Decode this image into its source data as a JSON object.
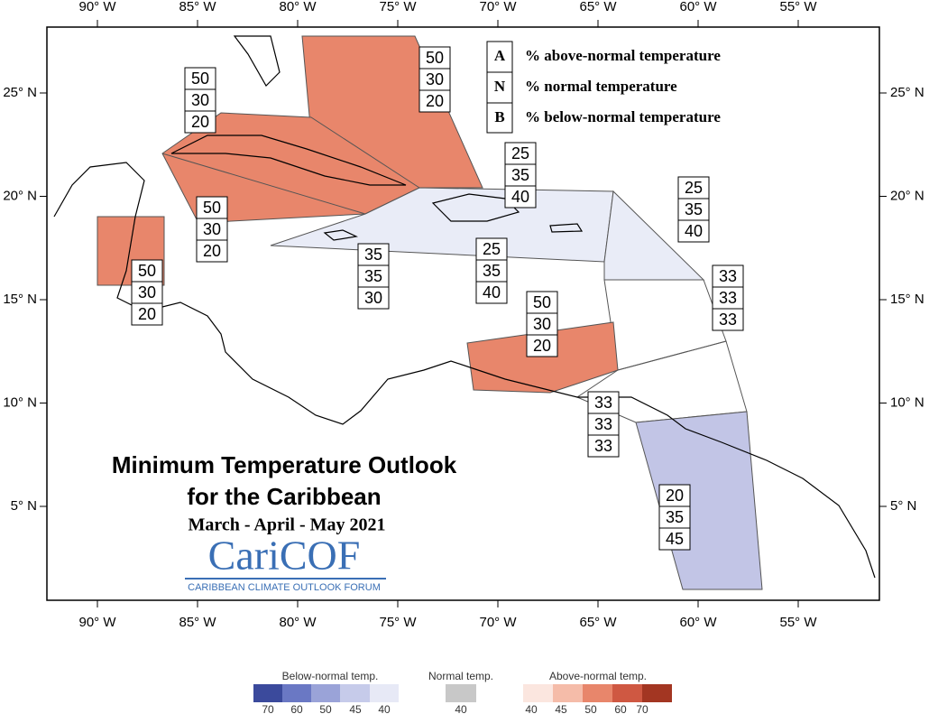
{
  "map": {
    "longitude_labels": [
      "90° W",
      "85° W",
      "80° W",
      "75° W",
      "70° W",
      "65° W",
      "60° W",
      "55° W"
    ],
    "latitude_labels": [
      "25° N",
      "20° N",
      "15° N",
      "10° N",
      "5° N"
    ]
  },
  "key": {
    "rows": [
      {
        "letter": "A",
        "text": "% above-normal temperature"
      },
      {
        "letter": "N",
        "text": "% normal temperature"
      },
      {
        "letter": "B",
        "text": "% below-normal temperature"
      }
    ]
  },
  "forecast_boxes": [
    [
      50,
      30,
      20
    ],
    [
      50,
      30,
      20
    ],
    [
      50,
      30,
      20
    ],
    [
      50,
      30,
      20
    ],
    [
      25,
      35,
      40
    ],
    [
      25,
      35,
      40
    ],
    [
      25,
      35,
      40
    ],
    [
      35,
      35,
      30
    ],
    [
      33,
      33,
      33
    ],
    [
      50,
      30,
      20
    ],
    [
      33,
      33,
      33
    ],
    [
      20,
      35,
      45
    ]
  ],
  "title": {
    "line1": "Minimum Temperature Outlook",
    "line2": "for the Caribbean",
    "season": "March - April - May 2021"
  },
  "logo": {
    "name": "CariCOF",
    "tagline": "CARIBBEAN CLIMATE OUTLOOK FORUM"
  },
  "color_legend": {
    "below": {
      "title": "Below-normal temp.",
      "labels": [
        70,
        60,
        50,
        45,
        40
      ]
    },
    "normal": {
      "title": "Normal temp.",
      "labels": [
        40
      ]
    },
    "above": {
      "title": "Above-normal temp.",
      "labels": [
        40,
        45,
        50,
        60,
        70
      ]
    }
  }
}
